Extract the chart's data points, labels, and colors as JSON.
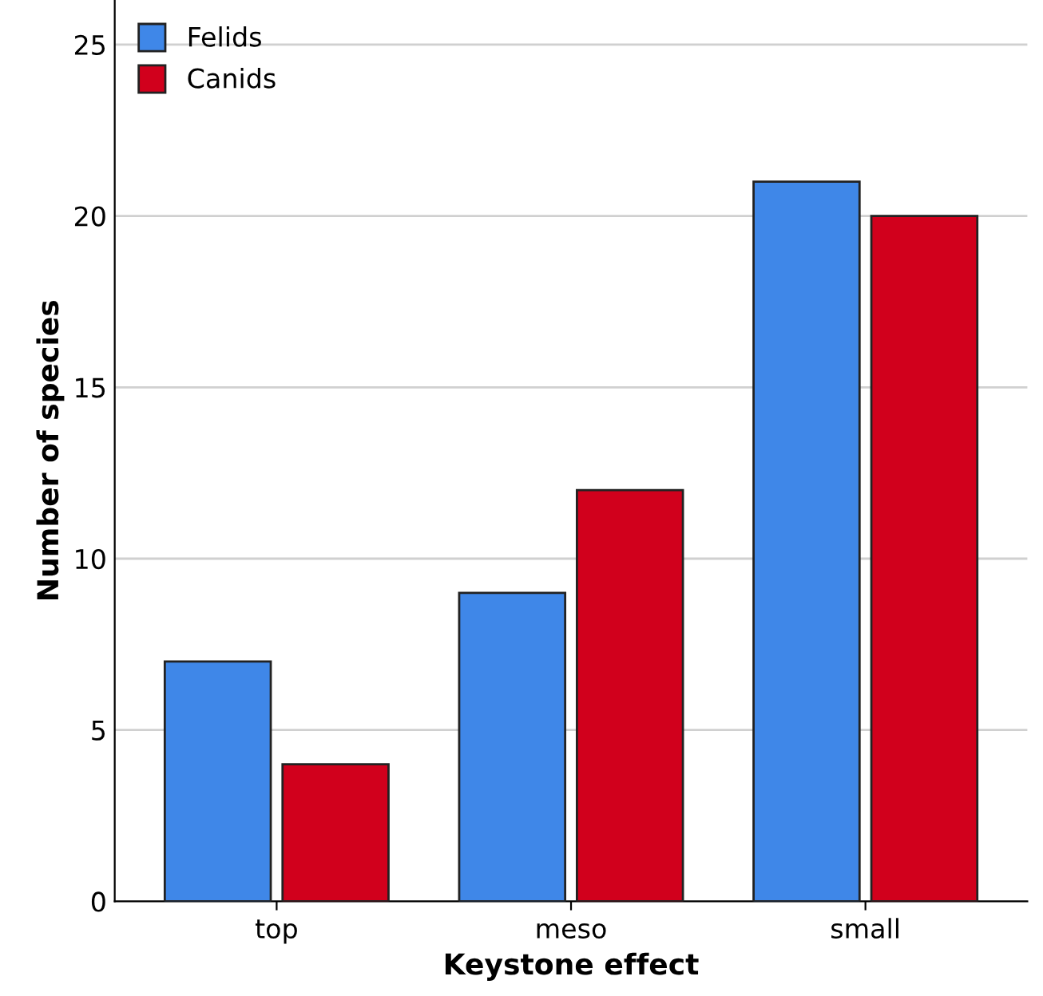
{
  "chart_data": {
    "type": "bar",
    "xlabel": "Keystone effect",
    "ylabel": "Number of species",
    "categories": [
      "top",
      "meso",
      "small"
    ],
    "series": [
      {
        "name": "Felids",
        "color": "#3f87e8",
        "values": [
          7,
          9,
          21
        ]
      },
      {
        "name": "Canids",
        "color": "#d1001c",
        "values": [
          4,
          12,
          20
        ]
      }
    ],
    "ylim": [
      0,
      26.3
    ],
    "yticks": [
      0,
      5,
      10,
      15,
      20,
      25
    ],
    "grid": "y",
    "legend": "top left"
  }
}
